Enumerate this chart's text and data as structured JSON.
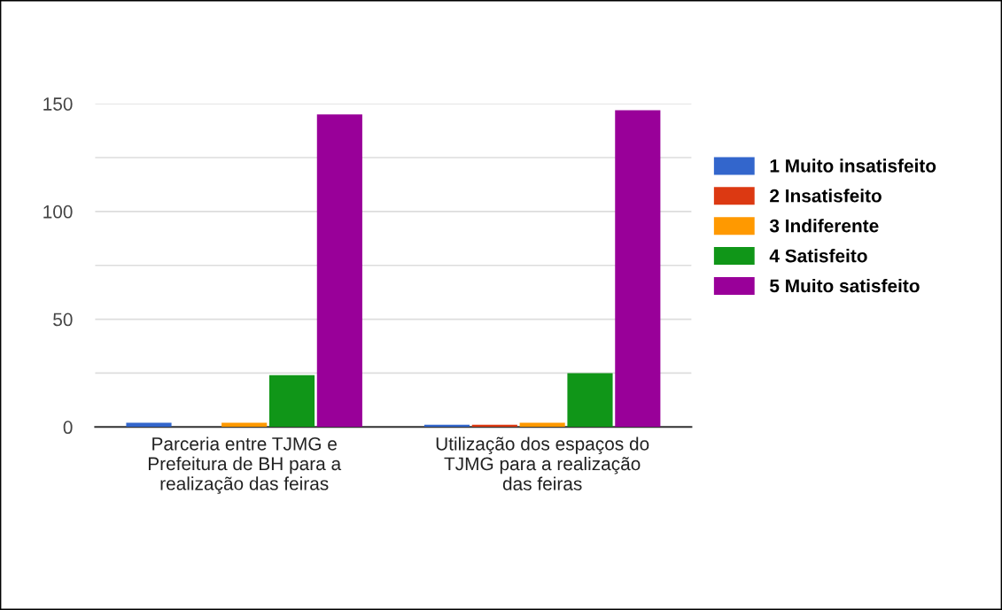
{
  "chart_data": {
    "type": "bar",
    "categories": [
      "Parceria entre TJMG e\nPrefeitura de BH para a\nrealização das feiras",
      "Utilização dos espaços do\nTJMG para a realização\ndas feiras"
    ],
    "series": [
      {
        "name": "1 Muito insatisfeito",
        "color": "#3366cc",
        "values": [
          2,
          1
        ]
      },
      {
        "name": "2 Insatisfeito",
        "color": "#dc3912",
        "values": [
          0,
          1
        ]
      },
      {
        "name": "3 Indiferente",
        "color": "#ff9900",
        "values": [
          2,
          2
        ]
      },
      {
        "name": "4 Satisfeito",
        "color": "#109618",
        "values": [
          24,
          25
        ]
      },
      {
        "name": "5 Muito satisfeito",
        "color": "#990099",
        "values": [
          145,
          147
        ]
      }
    ],
    "ylim": [
      0,
      150
    ],
    "yticks": [
      0,
      {
        "value": 25,
        "label": null
      },
      50,
      {
        "value": 75,
        "label": null
      },
      100,
      {
        "value": 125,
        "label": null
      },
      150
    ],
    "grid": "y",
    "legend": "right"
  }
}
